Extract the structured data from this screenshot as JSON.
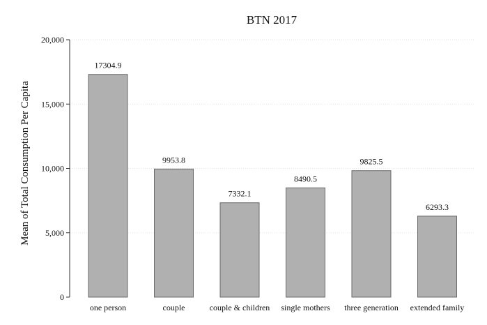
{
  "chart_data": {
    "type": "bar",
    "title": "BTN 2017",
    "xlabel": "",
    "ylabel": "Mean of Total Consumption Per Capita",
    "categories": [
      "one person",
      "couple",
      "couple & children",
      "single mothers",
      "three generation",
      "extended family"
    ],
    "values": [
      17304.9,
      9953.8,
      7332.1,
      8490.5,
      9825.5,
      6293.3
    ],
    "data_labels": [
      "17304.9",
      "9953.8",
      "7332.1",
      "8490.5",
      "9825.5",
      "6293.3"
    ],
    "ylim": [
      0,
      20000
    ],
    "yticks": [
      0,
      5000,
      10000,
      15000,
      20000
    ],
    "ytick_labels": [
      "0",
      "5,000",
      "10,000",
      "15,000",
      "20,000"
    ],
    "grid": true,
    "colors": {
      "bar_fill": "#b0b0b0",
      "bar_stroke": "#6a6a6a"
    }
  }
}
